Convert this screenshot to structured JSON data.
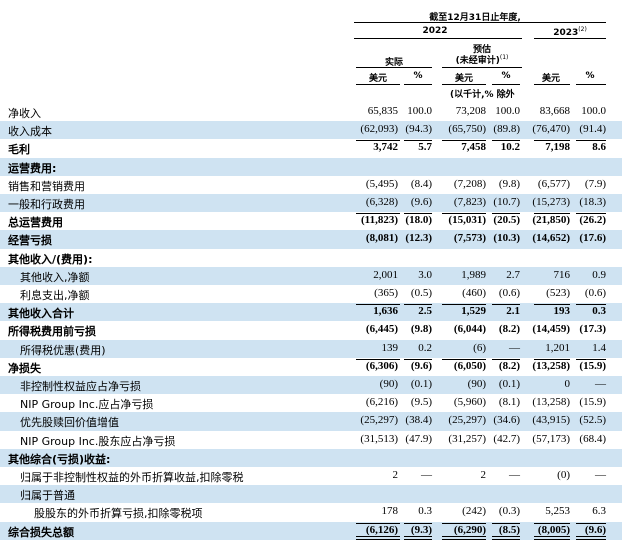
{
  "header": {
    "period": "截至12月31日止年度,",
    "year_2022": "2022",
    "year_2023": "2023",
    "year_2023_sup": "(2)",
    "actual": "实际",
    "estimate_line1": "预估",
    "estimate_line2": "(未经审计)",
    "estimate_sup": "(1)",
    "usd": "美元",
    "pct": "%",
    "units_note": "(以千计,% 除外"
  },
  "rows": [
    {
      "label": "净收入",
      "bold": false,
      "indent": 0,
      "band": false,
      "vals": [
        "65,835",
        "100.0",
        "73,208",
        "100.0",
        "83,668",
        "100.0"
      ]
    },
    {
      "label": "收入成本",
      "bold": false,
      "indent": 0,
      "band": true,
      "vals": [
        "(62,093)",
        "(94.3)",
        "(65,750)",
        "(89.8)",
        "(76,470)",
        "(91.4)"
      ]
    },
    {
      "label": "毛利",
      "bold": true,
      "indent": 0,
      "band": false,
      "vals": [
        "3,742",
        "5.7",
        "7,458",
        "10.2",
        "7,198",
        "8.6"
      ]
    },
    {
      "label": "运营费用:",
      "bold": true,
      "indent": 0,
      "band": true,
      "vals": [
        "",
        "",
        "",
        "",
        "",
        ""
      ]
    },
    {
      "label": "销售和营销费用",
      "bold": false,
      "indent": 0,
      "band": false,
      "vals": [
        "(5,495)",
        "(8.4)",
        "(7,208)",
        "(9.8)",
        "(6,577)",
        "(7.9)"
      ]
    },
    {
      "label": "一般和行政费用",
      "bold": false,
      "indent": 0,
      "band": true,
      "vals": [
        "(6,328)",
        "(9.6)",
        "(7,823)",
        "(10.7)",
        "(15,273)",
        "(18.3)"
      ]
    },
    {
      "label": "总运营费用",
      "bold": true,
      "indent": 0,
      "band": false,
      "vals": [
        "(11,823)",
        "(18.0)",
        "(15,031)",
        "(20.5)",
        "(21,850)",
        "(26.2)"
      ]
    },
    {
      "label": "经营亏损",
      "bold": true,
      "indent": 0,
      "band": true,
      "vals": [
        "(8,081)",
        "(12.3)",
        "(7,573)",
        "(10.3)",
        "(14,652)",
        "(17.6)"
      ]
    },
    {
      "label": "其他收入/(费用):",
      "bold": true,
      "indent": 0,
      "band": false,
      "vals": [
        "",
        "",
        "",
        "",
        "",
        ""
      ]
    },
    {
      "label": "其他收入,净额",
      "bold": false,
      "indent": 1,
      "band": true,
      "vals": [
        "2,001",
        "3.0",
        "1,989",
        "2.7",
        "716",
        "0.9"
      ]
    },
    {
      "label": "利息支出,净额",
      "bold": false,
      "indent": 1,
      "band": false,
      "vals": [
        "(365)",
        "(0.5)",
        "(460)",
        "(0.6)",
        "(523)",
        "(0.6)"
      ]
    },
    {
      "label": "其他收入合计",
      "bold": true,
      "indent": 0,
      "band": true,
      "vals": [
        "1,636",
        "2.5",
        "1,529",
        "2.1",
        "193",
        "0.3"
      ]
    },
    {
      "label": "所得税费用前亏损",
      "bold": true,
      "indent": 0,
      "band": false,
      "vals": [
        "(6,445)",
        "(9.8)",
        "(6,044)",
        "(8.2)",
        "(14,459)",
        "(17.3)"
      ]
    },
    {
      "label": "所得税优惠(费用)",
      "bold": false,
      "indent": 1,
      "band": true,
      "vals": [
        "139",
        "0.2",
        "(6)",
        "—",
        "1,201",
        "1.4"
      ]
    },
    {
      "label": "净损失",
      "bold": true,
      "indent": 0,
      "band": false,
      "vals": [
        "(6,306)",
        "(9.6)",
        "(6,050)",
        "(8.2)",
        "(13,258)",
        "(15.9)"
      ]
    },
    {
      "label": "非控制性权益应占净亏损",
      "bold": false,
      "indent": 1,
      "band": true,
      "vals": [
        "(90)",
        "(0.1)",
        "(90)",
        "(0.1)",
        "0",
        "—"
      ]
    },
    {
      "label": "NIP Group Inc.应占净亏损",
      "bold": false,
      "indent": 1,
      "band": false,
      "vals": [
        "(6,216)",
        "(9.5)",
        "(5,960)",
        "(8.1)",
        "(13,258)",
        "(15.9)"
      ]
    },
    {
      "label": "优先股赎回价值增值",
      "bold": false,
      "indent": 1,
      "band": true,
      "vals": [
        "(25,297)",
        "(38.4)",
        "(25,297)",
        "(34.6)",
        "(43,915)",
        "(52.5)"
      ]
    },
    {
      "label": "NIP Group Inc.股东应占净亏损",
      "bold": false,
      "indent": 1,
      "band": false,
      "vals": [
        "(31,513)",
        "(47.9)",
        "(31,257)",
        "(42.7)",
        "(57,173)",
        "(68.4)"
      ]
    },
    {
      "label": "其他综合(亏损)收益:",
      "bold": true,
      "indent": 0,
      "band": true,
      "vals": [
        "",
        "",
        "",
        "",
        "",
        ""
      ]
    },
    {
      "label": "归属于非控制性权益的外币折算收益,扣除零税",
      "bold": false,
      "indent": 1,
      "band": false,
      "vals": [
        "2",
        "—",
        "2",
        "—",
        "(0)",
        "—"
      ]
    },
    {
      "label": "归属于普通",
      "bold": false,
      "indent": 1,
      "band": true,
      "vals": [
        "",
        "",
        "",
        "",
        "",
        ""
      ]
    },
    {
      "label": "股股东的外币折算亏损,扣除零税项",
      "bold": false,
      "indent": 2,
      "band": false,
      "vals": [
        "178",
        "0.3",
        "(242)",
        "(0.3)",
        "5,253",
        "6.3"
      ]
    },
    {
      "label": "综合损失总额",
      "bold": true,
      "indent": 0,
      "band": true,
      "vals": [
        "(6,126)",
        "(9.3)",
        "(6,290)",
        "(8.5)",
        "(8,005)",
        "(9.6)"
      ]
    }
  ]
}
